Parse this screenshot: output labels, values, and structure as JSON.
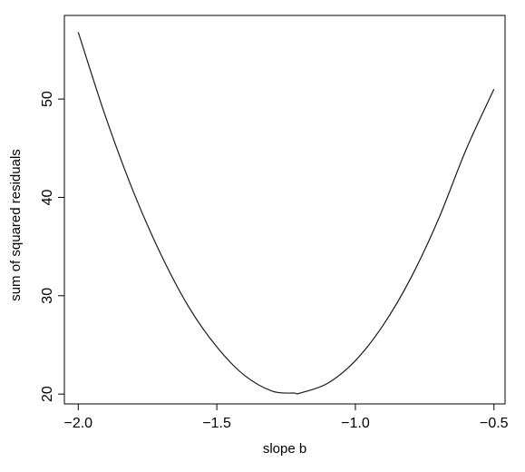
{
  "chart_data": {
    "type": "line",
    "title": "",
    "xlabel": "slope b",
    "ylabel": "sum of squared residuals",
    "xlim": [
      -2.05,
      -0.46
    ],
    "ylim": [
      19.0,
      58.5
    ],
    "xticks": [
      -2.0,
      -1.5,
      -1.0,
      -0.5
    ],
    "xtick_labels": [
      "−2.0",
      "−1.5",
      "−1.0",
      "−0.5"
    ],
    "yticks": [
      20,
      30,
      40,
      50
    ],
    "ytick_labels": [
      "20",
      "30",
      "40",
      "50"
    ],
    "grid": false,
    "legend": "none",
    "line_color": "#1a1a1a",
    "series": [
      {
        "x": [
          -2.0,
          -1.9,
          -1.8,
          -1.7,
          -1.6,
          -1.5,
          -1.4,
          -1.3,
          -1.22,
          -1.2,
          -1.1,
          -1.0,
          -0.9,
          -0.8,
          -0.7,
          -0.6,
          -0.5
        ],
        "values": [
          56.8,
          48.1,
          40.5,
          34.1,
          28.8,
          24.8,
          21.9,
          20.3,
          20.1,
          20.1,
          21.1,
          23.4,
          27.0,
          31.8,
          37.8,
          44.9,
          51.0
        ]
      }
    ]
  }
}
